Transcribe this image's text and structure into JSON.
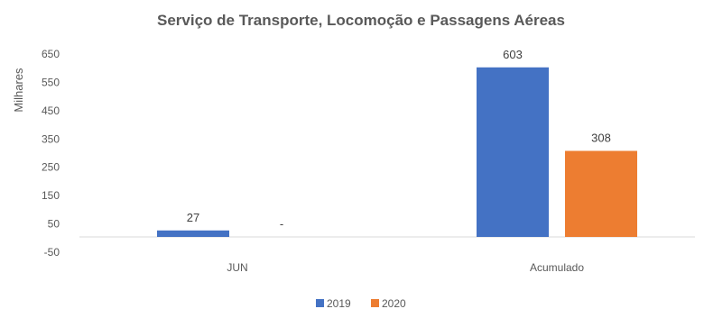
{
  "chart_data": {
    "type": "bar",
    "title": "Serviço de  Transporte, Locomoção e Passagens Aéreas",
    "ylabel": "Milhares",
    "xlabel": "",
    "ylim": [
      -50,
      650
    ],
    "yticks": [
      650,
      550,
      450,
      350,
      250,
      150,
      50,
      -50
    ],
    "categories": [
      "JUN",
      "Acumulado"
    ],
    "series": [
      {
        "name": "2019",
        "color": "#4472c4",
        "values": [
          27,
          603
        ],
        "labels": [
          "27",
          "603"
        ]
      },
      {
        "name": "2020",
        "color": "#ed7d31",
        "values": [
          0,
          308
        ],
        "labels": [
          "-",
          "308"
        ]
      }
    ],
    "legend_position": "bottom",
    "grid": false
  }
}
